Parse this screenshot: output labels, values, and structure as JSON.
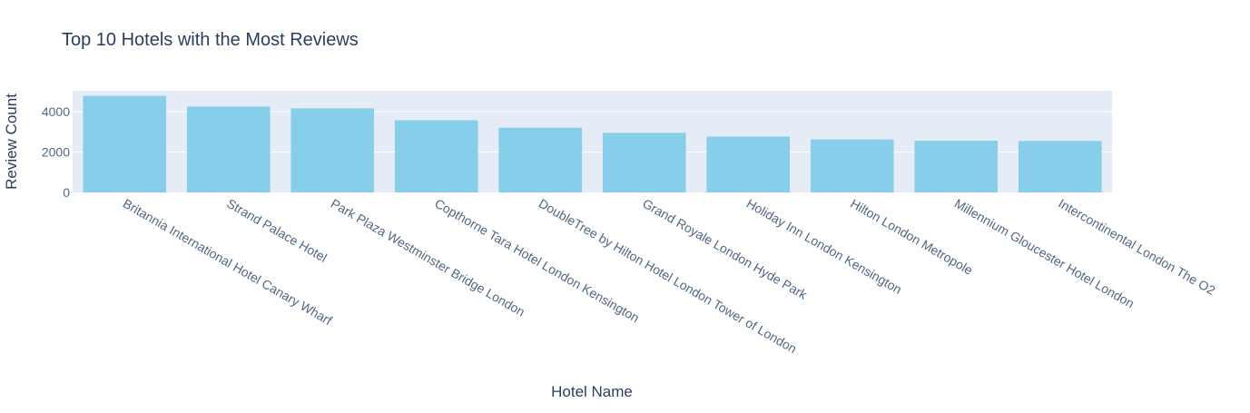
{
  "chart_data": {
    "type": "bar",
    "title": "Top 10 Hotels with the Most Reviews",
    "xlabel": "Hotel Name",
    "ylabel": "Review Count",
    "categories": [
      "Britannia International Hotel Canary Wharf",
      "Strand Palace Hotel",
      "Park Plaza Westminster Bridge London",
      "Copthorne Tara Hotel London Kensington",
      "DoubleTree by Hilton Hotel London Tower of London",
      "Grand Royale London Hyde Park",
      "Holiday Inn London Kensington",
      "Hilton London Metropole",
      "Millennium Gloucester Hotel London",
      "Intercontinental London The O2"
    ],
    "values": [
      4789,
      4256,
      4169,
      3578,
      3212,
      2958,
      2768,
      2628,
      2565,
      2551
    ],
    "ylim": [
      0,
      5040
    ],
    "yticks": [
      0,
      2000,
      4000
    ],
    "ytick_labels": [
      "0",
      "2000",
      "4000"
    ],
    "grid": true,
    "colors": {
      "bar": "#87ceeb",
      "plot_bg": "#e5ecf6",
      "grid": "#ffffff",
      "text": "#2a3f5f",
      "tick_text": "#506784"
    }
  }
}
